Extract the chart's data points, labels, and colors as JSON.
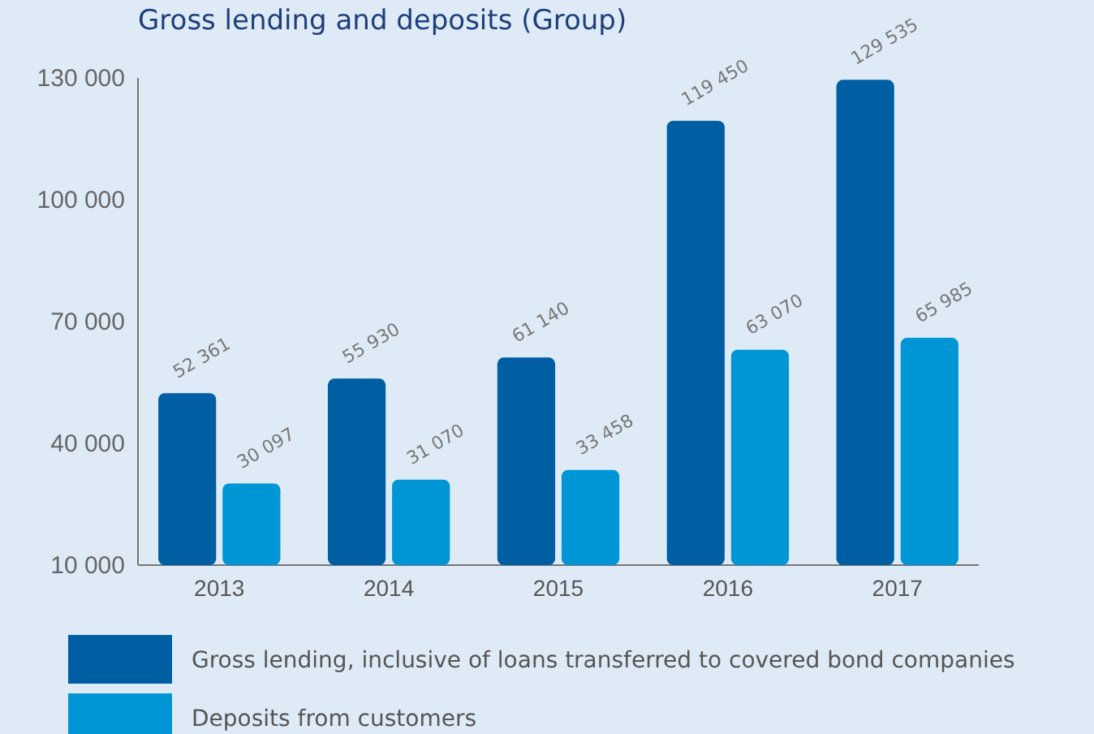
{
  "chart_data": {
    "type": "bar",
    "title": "Gross lending and deposits (Group)",
    "categories": [
      "2013",
      "2014",
      "2015",
      "2016",
      "2017"
    ],
    "series": [
      {
        "name": "Gross lending, inclusive of loans transferred to covered bond companies",
        "color": "#005ea2",
        "values": [
          52361,
          55930,
          61140,
          119450,
          129535
        ],
        "value_labels": [
          "52 361",
          "55 930",
          "61 140",
          "119 450",
          "129 535"
        ]
      },
      {
        "name": "Deposits from customers",
        "color": "#0096d6",
        "values": [
          30097,
          31070,
          33458,
          63070,
          65985
        ],
        "value_labels": [
          "30 097",
          "31 070",
          "33 458",
          "63 070",
          "65 985"
        ]
      }
    ],
    "ylim": [
      10000,
      130000
    ],
    "yticks": [
      {
        "value": 10000,
        "label": "10 000"
      },
      {
        "value": 40000,
        "label": "40 000"
      },
      {
        "value": 70000,
        "label": "70 000"
      },
      {
        "value": 100000,
        "label": "100 000"
      },
      {
        "value": 130000,
        "label": "130 000"
      }
    ],
    "grid": false,
    "legend": "bottom"
  }
}
